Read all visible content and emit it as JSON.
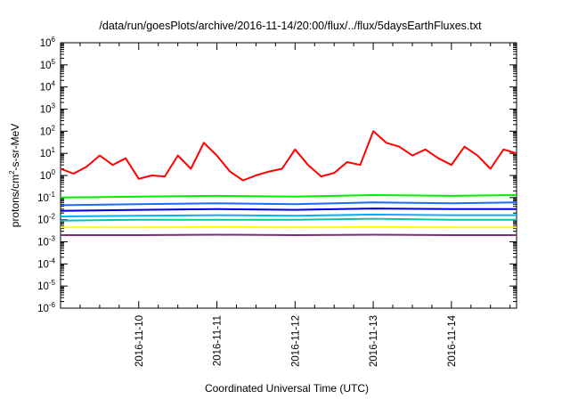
{
  "chart_data": {
    "type": "line",
    "title": "/data/run/goesPlots/archive/2016-11-14/20:00/flux/../flux/5daysEarthFluxes.txt",
    "xlabel": "Coordinated Universal Time (UTC)",
    "ylabel": {
      "prefix": "protons/cm",
      "sup": "2",
      "suffix": "-s-sr-MeV"
    },
    "y_scale": "log",
    "ylim": [
      1e-06,
      1000000.0
    ],
    "y_ticks": [
      {
        "base": "10",
        "exp": "-6"
      },
      {
        "base": "10",
        "exp": "-5"
      },
      {
        "base": "10",
        "exp": "-4"
      },
      {
        "base": "10",
        "exp": "-3"
      },
      {
        "base": "10",
        "exp": "-2"
      },
      {
        "base": "10",
        "exp": "-1"
      },
      {
        "base": "10",
        "exp": "0"
      },
      {
        "base": "10",
        "exp": "1"
      },
      {
        "base": "10",
        "exp": "2"
      },
      {
        "base": "10",
        "exp": "3"
      },
      {
        "base": "10",
        "exp": "4"
      },
      {
        "base": "10",
        "exp": "5"
      },
      {
        "base": "10",
        "exp": "6"
      }
    ],
    "x_ticks": [
      "2016-11-10",
      "2016-11-11",
      "2016-11-12",
      "2016-11-13",
      "2016-11-14"
    ],
    "xlim": [
      "2016-11-09 00:00",
      "2016-11-14 20:00"
    ],
    "grid": false,
    "legend": "none",
    "series": [
      {
        "color": "#ff0000",
        "x": [
          "2016-11-09 00:00",
          "2016-11-09 04:00",
          "2016-11-09 08:00",
          "2016-11-09 12:00",
          "2016-11-09 16:00",
          "2016-11-09 20:00",
          "2016-11-10 00:00",
          "2016-11-10 04:00",
          "2016-11-10 08:00",
          "2016-11-10 12:00",
          "2016-11-10 16:00",
          "2016-11-10 20:00",
          "2016-11-11 00:00",
          "2016-11-11 04:00",
          "2016-11-11 08:00",
          "2016-11-11 12:00",
          "2016-11-11 16:00",
          "2016-11-11 20:00",
          "2016-11-12 00:00",
          "2016-11-12 04:00",
          "2016-11-12 08:00",
          "2016-11-12 12:00",
          "2016-11-12 16:00",
          "2016-11-12 20:00",
          "2016-11-13 00:00",
          "2016-11-13 04:00",
          "2016-11-13 08:00",
          "2016-11-13 12:00",
          "2016-11-13 16:00",
          "2016-11-13 20:00",
          "2016-11-14 00:00",
          "2016-11-14 04:00",
          "2016-11-14 08:00",
          "2016-11-14 12:00",
          "2016-11-14 16:00",
          "2016-11-14 20:00"
        ],
        "y": [
          2,
          1.2,
          2.5,
          8,
          3,
          6,
          0.7,
          1,
          0.9,
          8,
          2,
          30,
          8,
          1.5,
          0.6,
          1,
          1.5,
          2,
          15,
          3,
          0.9,
          1.3,
          4,
          3,
          100,
          30,
          20,
          8,
          15,
          6,
          3,
          20,
          8,
          2,
          15,
          10
        ]
      },
      {
        "color": "#00ee00",
        "x": [
          "2016-11-09 00:00",
          "2016-11-10 00:00",
          "2016-11-11 00:00",
          "2016-11-12 00:00",
          "2016-11-13 00:00",
          "2016-11-14 00:00",
          "2016-11-14 20:00"
        ],
        "y": [
          0.1,
          0.11,
          0.12,
          0.11,
          0.13,
          0.12,
          0.13
        ]
      },
      {
        "color": "#1a6cff",
        "x": [
          "2016-11-09 00:00",
          "2016-11-10 00:00",
          "2016-11-11 00:00",
          "2016-11-12 00:00",
          "2016-11-13 00:00",
          "2016-11-14 00:00",
          "2016-11-14 20:00"
        ],
        "y": [
          0.045,
          0.05,
          0.055,
          0.05,
          0.06,
          0.055,
          0.06
        ]
      },
      {
        "color": "#0000dd",
        "x": [
          "2016-11-09 00:00",
          "2016-11-10 00:00",
          "2016-11-11 00:00",
          "2016-11-12 00:00",
          "2016-11-13 00:00",
          "2016-11-14 00:00",
          "2016-11-14 20:00"
        ],
        "y": [
          0.025,
          0.028,
          0.03,
          0.028,
          0.032,
          0.03,
          0.03
        ]
      },
      {
        "color": "#00b0ff",
        "x": [
          "2016-11-09 00:00",
          "2016-11-10 00:00",
          "2016-11-11 00:00",
          "2016-11-12 00:00",
          "2016-11-13 00:00",
          "2016-11-14 00:00",
          "2016-11-14 20:00"
        ],
        "y": [
          0.014,
          0.015,
          0.016,
          0.015,
          0.017,
          0.016,
          0.016
        ]
      },
      {
        "color": "#00c8a0",
        "x": [
          "2016-11-09 00:00",
          "2016-11-10 00:00",
          "2016-11-11 00:00",
          "2016-11-12 00:00",
          "2016-11-13 00:00",
          "2016-11-14 00:00",
          "2016-11-14 20:00"
        ],
        "y": [
          0.009,
          0.01,
          0.01,
          0.01,
          0.011,
          0.01,
          0.01
        ]
      },
      {
        "color": "#ffff00",
        "x": [
          "2016-11-09 00:00",
          "2016-11-10 00:00",
          "2016-11-11 00:00",
          "2016-11-12 00:00",
          "2016-11-13 00:00",
          "2016-11-14 00:00",
          "2016-11-14 20:00"
        ],
        "y": [
          0.0045,
          0.0045,
          0.0046,
          0.0045,
          0.0046,
          0.0045,
          0.0045
        ]
      },
      {
        "color": "#7b2d7b",
        "x": [
          "2016-11-09 00:00",
          "2016-11-10 00:00",
          "2016-11-11 00:00",
          "2016-11-12 00:00",
          "2016-11-13 00:00",
          "2016-11-14 00:00",
          "2016-11-14 20:00"
        ],
        "y": [
          0.002,
          0.002,
          0.0021,
          0.002,
          0.0021,
          0.002,
          0.002
        ]
      }
    ]
  }
}
